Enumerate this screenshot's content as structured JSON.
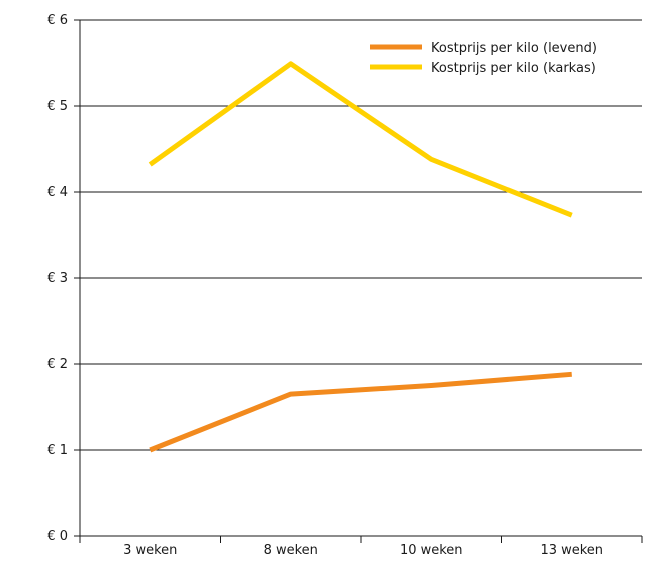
{
  "chart_data": {
    "type": "line",
    "categories": [
      "3 weken",
      "8 weken",
      "10 weken",
      "13 weken"
    ],
    "y_tick_labels": [
      "€ 0",
      "€ 1",
      "€ 2",
      "€ 3",
      "€ 4",
      "€ 5",
      "€ 6"
    ],
    "ylim": [
      0,
      6
    ],
    "grid": true,
    "legend_position": "top-right",
    "series": [
      {
        "name": "Kostprijs per kilo (levend)",
        "color": "#f28a1e",
        "values": [
          1.0,
          1.65,
          1.75,
          1.88
        ]
      },
      {
        "name": "Kostprijs per kilo (karkas)",
        "color": "#ffd100",
        "values": [
          4.32,
          5.49,
          4.38,
          3.73
        ]
      }
    ],
    "title": "",
    "xlabel": "",
    "ylabel": ""
  }
}
